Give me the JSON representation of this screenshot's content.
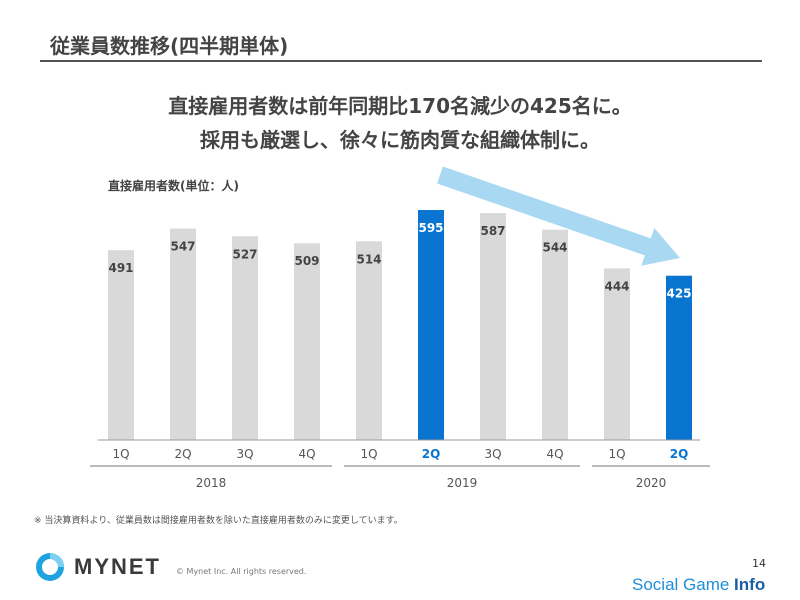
{
  "page": {
    "title": "従業員数推移(四半期単体)",
    "headline1": "直接雇用者数は前年同期比170名減少の425名に。",
    "headline2": "採用も厳選し、徐々に筋肉質な組織体制に。",
    "footnote": "※ 当決算資料より、従業員数は間接雇用者数を除いた直接雇用者数のみに変更しています。",
    "copyright": "© Mynet Inc. All rights reserved.",
    "page_number": "14",
    "logo_text": "MYNET",
    "watermark_main": "Social Game ",
    "watermark_bold": "Info"
  },
  "colors": {
    "gray_bar": "#d9d9d9",
    "highlight_bar": "#0a75d1",
    "arrow": "#a9d8f3",
    "logo": "#1fa3e0"
  },
  "chart_data": {
    "type": "bar",
    "unit_label": "直接雇用者数(単位：人)",
    "categories": [
      "1Q",
      "2Q",
      "3Q",
      "4Q",
      "1Q",
      "2Q",
      "3Q",
      "4Q",
      "1Q",
      "2Q"
    ],
    "years": [
      {
        "label": "2018",
        "quarters": 4
      },
      {
        "label": "2019",
        "quarters": 4
      },
      {
        "label": "2020",
        "quarters": 2
      }
    ],
    "values": [
      491,
      547,
      527,
      509,
      514,
      595,
      587,
      544,
      444,
      425
    ],
    "highlighted_indices": [
      5,
      9
    ],
    "trend_arrow": {
      "from_index": 5,
      "to_index": 9
    }
  }
}
